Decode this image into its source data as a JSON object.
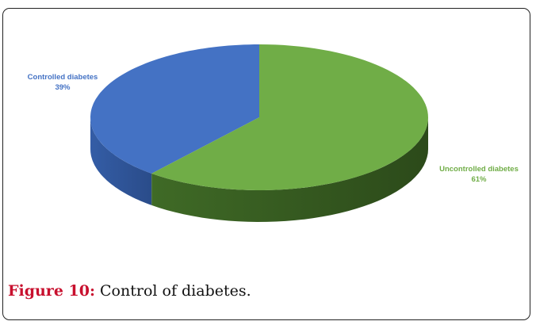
{
  "caption": {
    "label": "Figure 10:",
    "text": " Control of diabetes."
  },
  "chart_data": {
    "type": "pie",
    "style": "3d",
    "title": "",
    "slices": [
      {
        "name": "Controlled diabetes",
        "value": 39,
        "pct_label": "39%",
        "color": "#4472c4"
      },
      {
        "name": "Uncontrolled diabetes",
        "value": 61,
        "pct_label": "61%",
        "color": "#70ad47"
      }
    ],
    "data_labels": "outside"
  }
}
